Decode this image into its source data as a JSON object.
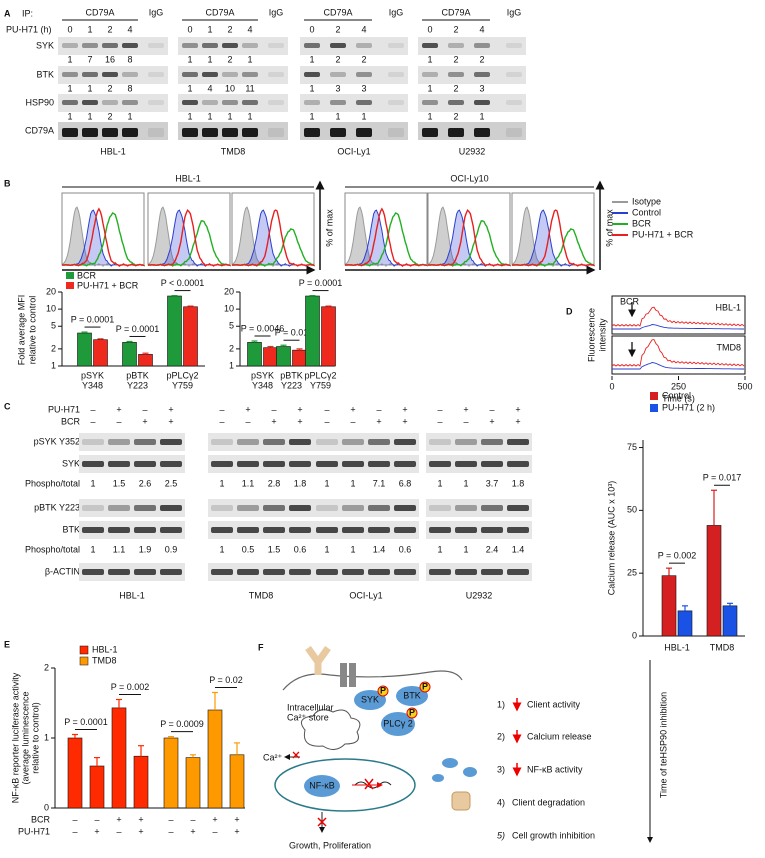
{
  "panel_a": {
    "letter": "A",
    "ip_label": "IP:",
    "ip_target": "CD79A",
    "control": "IgG",
    "time_label": "PU-H71 (h)",
    "rows": [
      "SYK",
      "BTK",
      "HSP90",
      "CD79A"
    ],
    "groups": [
      {
        "cell_line": "HBL-1",
        "times": [
          0,
          1,
          2,
          4
        ],
        "quant": [
          [
            1,
            7,
            16,
            8
          ],
          [
            1,
            1,
            2,
            8
          ],
          [
            1,
            1,
            2,
            1
          ]
        ]
      },
      {
        "cell_line": "TMD8",
        "times": [
          0,
          1,
          2,
          4
        ],
        "quant": [
          [
            1,
            1,
            2,
            1
          ],
          [
            1,
            4,
            10,
            11
          ],
          [
            1,
            1,
            1,
            1
          ]
        ]
      },
      {
        "cell_line": "OCI-Ly1",
        "times": [
          0,
          2,
          4
        ],
        "quant": [
          [
            1,
            2,
            2
          ],
          [
            1,
            3,
            3
          ],
          [
            1,
            1,
            1
          ]
        ]
      },
      {
        "cell_line": "U2932",
        "times": [
          0,
          2,
          4
        ],
        "quant": [
          [
            1,
            2,
            2
          ],
          [
            1,
            2,
            3
          ],
          [
            1,
            2,
            1
          ]
        ]
      }
    ]
  },
  "panel_b": {
    "letter": "B",
    "histogram_groups": [
      "HBL-1",
      "OCI-Ly10"
    ],
    "histogram_axis_label": "% of max",
    "legend": [
      {
        "name": "Isotype",
        "color": "#9a9a9a"
      },
      {
        "name": "Control",
        "color": "#2b3fcf"
      },
      {
        "name": "BCR",
        "color": "#22b022"
      },
      {
        "name": "PU-H71 + BCR",
        "color": "#e82020"
      }
    ]
  },
  "panel_c": {
    "letter": "C",
    "treatments": [
      {
        "name": "PU-H71",
        "signs": [
          "–",
          "+",
          "–",
          "+"
        ]
      },
      {
        "name": "BCR",
        "signs": [
          "–",
          "–",
          "+",
          "+"
        ]
      }
    ],
    "blocks": [
      {
        "blots": [
          "pSYK Y352",
          "SYK"
        ],
        "ratio_label": "Phospho/total"
      },
      {
        "blots": [
          "pBTK Y223",
          "BTK"
        ],
        "ratio_label": "Phospho/total"
      }
    ],
    "loading": "β-ACTIN",
    "groups": [
      {
        "cell_line": "HBL-1",
        "ratios": [
          [
            1,
            1.5,
            2.6,
            2.5
          ],
          [
            1,
            1.1,
            1.9,
            0.9
          ]
        ]
      },
      {
        "cell_line": "TMD8",
        "ratios": [
          [
            1,
            1.1,
            2.8,
            1.8
          ],
          [
            1,
            0.5,
            1.5,
            0.6
          ]
        ]
      },
      {
        "cell_line": "OCI-Ly1",
        "ratios": [
          [
            1,
            1,
            7.1,
            6.8
          ],
          [
            1,
            1,
            1.4,
            0.6
          ]
        ]
      },
      {
        "cell_line": "U2932",
        "ratios": [
          [
            1,
            1,
            3.7,
            1.8
          ],
          [
            1,
            1,
            2.4,
            1.4
          ]
        ]
      }
    ]
  },
  "panel_d": {
    "letter": "D",
    "stimulus": "BCR",
    "cell_lines": [
      "HBL-1",
      "TMD8"
    ],
    "ylabel": [
      "Fluorescence",
      "intensity"
    ],
    "xlabel": "Time (s)",
    "xlim": [
      0,
      500
    ],
    "xticks": [
      0,
      250,
      500
    ]
  },
  "chart_data": [
    {
      "type": "bar",
      "log": true,
      "ylabel": [
        "Fold average MFI",
        "relative to control"
      ],
      "ylim": [
        1,
        20
      ],
      "yticks": [
        1,
        2,
        5,
        10,
        20
      ],
      "categories": [
        [
          "pSYK",
          "Y348"
        ],
        [
          "pBTK",
          "Y223"
        ],
        [
          "pPLCγ2",
          "Y759"
        ]
      ],
      "legend": [
        {
          "name": "BCR",
          "color": "#1f9a3a"
        },
        {
          "name": "PU-H71 + BCR",
          "color": "#ee2a1e"
        }
      ],
      "groups": [
        {
          "series": [
            {
              "values": [
                3.8,
                2.6,
                17
              ],
              "errors": [
                0.15,
                0.1,
                0.3
              ]
            },
            {
              "values": [
                2.9,
                1.6,
                11
              ],
              "errors": [
                0.1,
                0.08,
                0.3
              ]
            }
          ],
          "p_values": [
            "P = 0.0001",
            "P = 0.0001",
            "P < 0.0001"
          ]
        },
        {
          "series": [
            {
              "values": [
                2.6,
                2.2,
                17
              ],
              "errors": [
                0.15,
                0.12,
                0.3
              ]
            },
            {
              "values": [
                2.1,
                1.9,
                11
              ],
              "errors": [
                0.1,
                0.1,
                0.3
              ]
            }
          ],
          "p_values": [
            "P = 0.0046",
            "P = 0.01",
            "P = 0.0001"
          ]
        }
      ]
    },
    {
      "type": "bar",
      "ylabel": "Calcium release (AUC x 10³)",
      "ylim": [
        0,
        78
      ],
      "yticks": [
        0,
        25,
        50,
        75
      ],
      "categories": [
        "HBL-1",
        "TMD8"
      ],
      "series": [
        {
          "name": "Control",
          "color": "#d42020",
          "values": [
            24,
            44
          ],
          "errors": [
            3,
            14
          ]
        },
        {
          "name": "PU-H71 (2 h)",
          "color": "#1a52e6",
          "values": [
            10,
            12
          ],
          "errors": [
            2,
            1
          ]
        }
      ],
      "p_values": [
        "P = 0.002",
        "P = 0.017"
      ]
    },
    {
      "type": "bar",
      "ylabel": [
        "NF-κB reporter luciferase activity",
        "(average luminescence",
        "relative to control)"
      ],
      "letter": "E",
      "ylim": [
        0,
        2
      ],
      "yticks": [
        0,
        1,
        2
      ],
      "conditions": [
        {
          "name": "BCR",
          "signs": [
            "–",
            "–",
            "+",
            "+",
            "–",
            "–",
            "+",
            "+"
          ]
        },
        {
          "name": "PU-H71",
          "signs": [
            "–",
            "+",
            "–",
            "+",
            "–",
            "+",
            "–",
            "+"
          ]
        }
      ],
      "series": [
        {
          "name": "HBL-1",
          "color": "#ff2a00",
          "values": [
            1.0,
            0.6,
            1.43,
            0.74
          ],
          "errors": [
            0.05,
            0.12,
            0.12,
            0.15
          ],
          "p_values": [
            "P = 0.0001",
            "P = 0.002"
          ]
        },
        {
          "name": "TMD8",
          "color": "#ff9900",
          "values": [
            1.0,
            0.72,
            1.4,
            0.76
          ],
          "errors": [
            0.02,
            0.04,
            0.25,
            0.17
          ],
          "p_values": [
            "P = 0.0009",
            "P = 0.02"
          ]
        }
      ]
    }
  ],
  "panel_f": {
    "letter": "F",
    "proteins": [
      "SYK",
      "BTK",
      "PLCγ 2"
    ],
    "phospho": "P",
    "store": [
      "Intracellular",
      "Ca²⁺ store"
    ],
    "ion": "Ca²⁺",
    "nfkb": "NF-κB",
    "outcome": "Growth, Proliferation",
    "steps": [
      {
        "number": "1)",
        "text": "Client activity"
      },
      {
        "number": "2)",
        "text": "Calcium release"
      },
      {
        "number": "3)",
        "text": "NF-κB activity"
      },
      {
        "number": "4)",
        "text": "Client degradation"
      },
      {
        "number": "5)",
        "text": "Cell growth inhibition"
      }
    ],
    "timeline": "Time of teHSP90 inhibition"
  }
}
